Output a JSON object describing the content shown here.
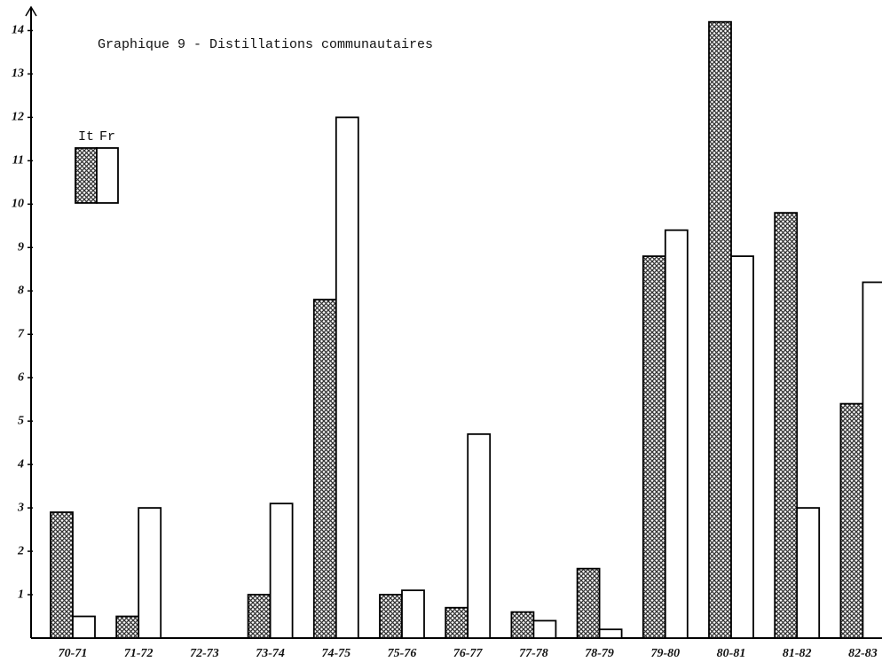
{
  "chart_data": {
    "type": "bar",
    "title": "Graphique 9 - Distillations communautaires",
    "categories": [
      "70-71",
      "71-72",
      "72-73",
      "73-74",
      "74-75",
      "75-76",
      "76-77",
      "77-78",
      "78-79",
      "79-80",
      "80-81",
      "81-82",
      "82-83"
    ],
    "series": [
      {
        "name": "It",
        "color": "#333333",
        "hatch": true,
        "values": [
          2.9,
          0.5,
          0,
          1.0,
          7.8,
          1.0,
          0.7,
          0.6,
          1.6,
          8.8,
          14.2,
          9.8,
          5.4
        ]
      },
      {
        "name": "Fr",
        "color": "#ffffff",
        "hatch": false,
        "values": [
          0.5,
          3.0,
          0,
          3.1,
          12.0,
          1.1,
          4.7,
          0.4,
          0.2,
          9.4,
          8.8,
          3.0,
          8.2
        ]
      }
    ],
    "ylim": [
      0,
      14.5
    ],
    "yticks": [
      1,
      2,
      3,
      4,
      5,
      6,
      7,
      8,
      9,
      10,
      11,
      12,
      13,
      14
    ],
    "grid": false
  }
}
